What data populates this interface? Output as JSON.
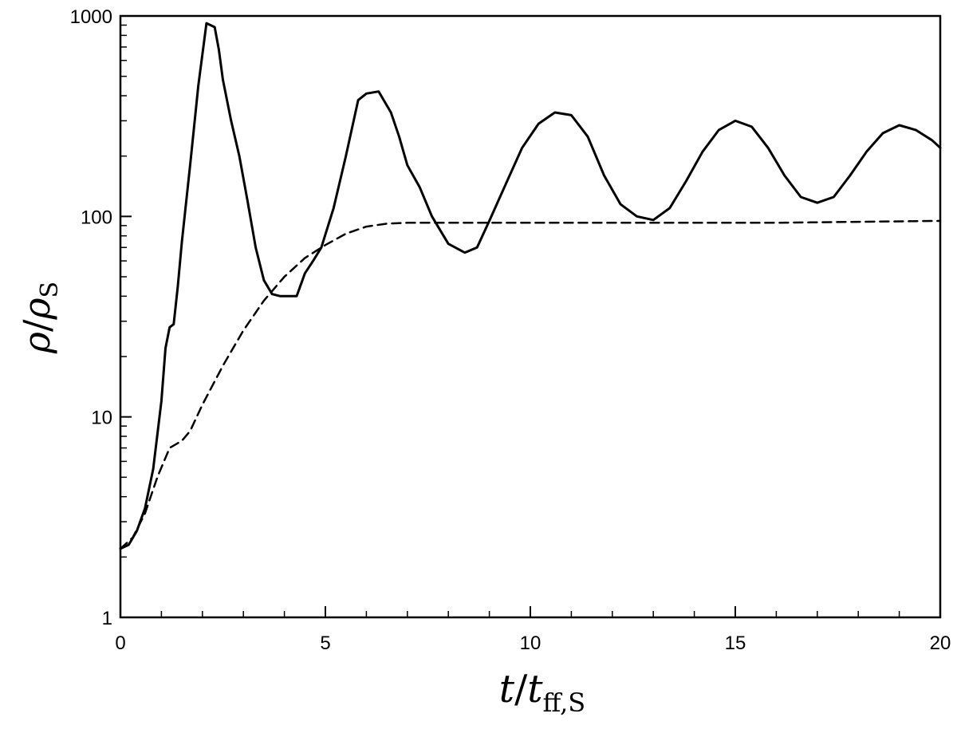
{
  "chart_data": {
    "type": "line",
    "xlabel": {
      "main": "t",
      "slash": "/",
      "var": "t",
      "sub": "ff,S"
    },
    "ylabel": {
      "main": "ρ",
      "slash": "/",
      "var": "ρ",
      "sub": "S"
    },
    "xlim": [
      0,
      20
    ],
    "ylim": [
      1,
      1000
    ],
    "yscale": "log",
    "grid": false,
    "x_ticks": [
      0,
      5,
      10,
      15,
      20
    ],
    "x_tick_labels": [
      "0",
      "5",
      "10",
      "15",
      "20"
    ],
    "y_ticks": [
      1,
      10,
      100,
      1000
    ],
    "y_tick_labels": [
      "1",
      "10",
      "100",
      "1000"
    ],
    "series": [
      {
        "style": "solid",
        "color": "#000000",
        "x": [
          0,
          0.2,
          0.4,
          0.6,
          0.8,
          1.0,
          1.1,
          1.2,
          1.3,
          1.4,
          1.5,
          1.7,
          1.9,
          2.1,
          2.3,
          2.4,
          2.5,
          2.7,
          2.9,
          3.1,
          3.3,
          3.5,
          3.7,
          3.9,
          4.1,
          4.3,
          4.5,
          4.7,
          4.9,
          5.2,
          5.5,
          5.8,
          6.0,
          6.3,
          6.6,
          6.8,
          7.0,
          7.3,
          7.6,
          8.0,
          8.4,
          8.7,
          9.0,
          9.4,
          9.8,
          10.2,
          10.6,
          11.0,
          11.4,
          11.8,
          12.2,
          12.6,
          13.0,
          13.4,
          13.8,
          14.2,
          14.6,
          15.0,
          15.4,
          15.8,
          16.2,
          16.6,
          17.0,
          17.4,
          17.8,
          18.2,
          18.6,
          19.0,
          19.4,
          19.8,
          20.0
        ],
        "y": [
          2.2,
          2.3,
          2.7,
          3.5,
          5.5,
          12,
          22,
          28,
          29,
          45,
          75,
          180,
          450,
          920,
          880,
          680,
          480,
          300,
          200,
          120,
          70,
          48,
          41,
          40,
          40,
          40,
          52,
          60,
          70,
          110,
          200,
          380,
          410,
          420,
          330,
          250,
          180,
          140,
          100,
          73,
          66,
          70,
          95,
          145,
          220,
          290,
          330,
          320,
          250,
          160,
          115,
          100,
          96,
          110,
          150,
          210,
          270,
          300,
          280,
          220,
          160,
          125,
          117,
          125,
          160,
          210,
          260,
          285,
          270,
          240,
          220
        ]
      },
      {
        "style": "dashed",
        "color": "#000000",
        "x": [
          0,
          0.3,
          0.6,
          0.9,
          1.2,
          1.5,
          1.7,
          2.0,
          2.5,
          3.0,
          3.5,
          4.0,
          4.5,
          5.0,
          5.5,
          6.0,
          6.5,
          7.0,
          8.0,
          9.0,
          10.0,
          12.0,
          14.0,
          16.0,
          18.0,
          20.0
        ],
        "y": [
          2.2,
          2.5,
          3.3,
          5.0,
          7.0,
          7.6,
          8.5,
          11.5,
          18,
          27,
          38,
          50,
          62,
          72,
          82,
          89,
          92,
          93,
          93,
          93,
          93,
          93,
          93,
          93,
          94,
          95
        ]
      }
    ]
  }
}
